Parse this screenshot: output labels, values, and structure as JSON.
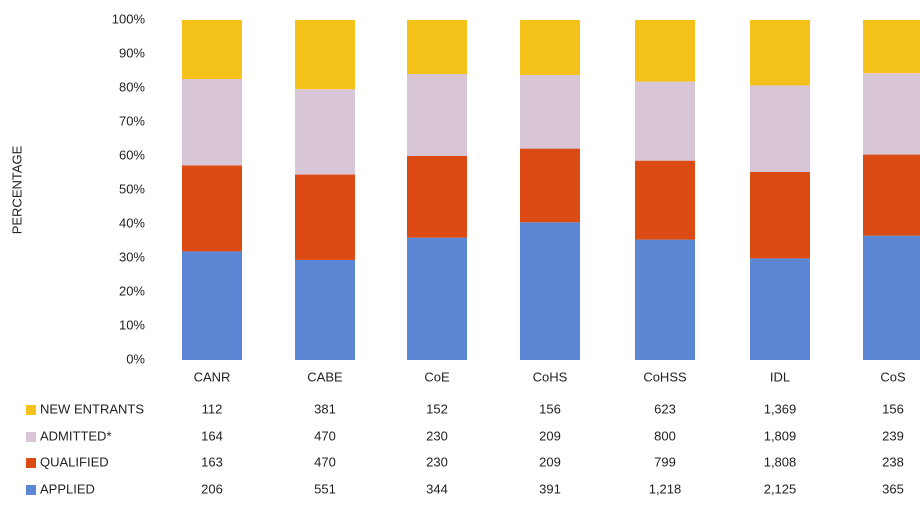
{
  "chart_data": {
    "type": "stacked_percent_bar",
    "y_axis_label": "PERCENTAGE",
    "categories": [
      "CANR",
      "CABE",
      "CoE",
      "CoHS",
      "CoHSS",
      "IDL",
      "CoS"
    ],
    "series": [
      {
        "name": "NEW ENTRANTS",
        "color": "#f5c21b",
        "values": [
          112,
          381,
          152,
          156,
          623,
          1369,
          156
        ],
        "value_labels": [
          "112",
          "381",
          "152",
          "156",
          "623",
          "1,369",
          "156"
        ]
      },
      {
        "name": "ADMITTED*",
        "color": "#d8c5d6",
        "values": [
          164,
          470,
          230,
          209,
          800,
          1809,
          239
        ],
        "value_labels": [
          "164",
          "470",
          "230",
          "209",
          "800",
          "1,809",
          "239"
        ]
      },
      {
        "name": "QUALIFIED",
        "color": "#dc4b14",
        "values": [
          163,
          470,
          230,
          209,
          799,
          1808,
          238
        ],
        "value_labels": [
          "163",
          "470",
          "230",
          "209",
          "799",
          "1,808",
          "238"
        ]
      },
      {
        "name": "APPLIED",
        "color": "#5b86d3",
        "values": [
          206,
          551,
          344,
          391,
          1218,
          2125,
          365
        ],
        "value_labels": [
          "206",
          "551",
          "344",
          "391",
          "1,218",
          "2,125",
          "365"
        ]
      }
    ],
    "ylim": [
      0,
      100
    ],
    "yticks": [
      {
        "value": 0,
        "label": "0%"
      },
      {
        "value": 10,
        "label": "10%"
      },
      {
        "value": 20,
        "label": "20%"
      },
      {
        "value": 30,
        "label": "30%"
      },
      {
        "value": 40,
        "label": "40%"
      },
      {
        "value": 50,
        "label": "50%"
      },
      {
        "value": 60,
        "label": "60%"
      },
      {
        "value": 70,
        "label": "70%"
      },
      {
        "value": 80,
        "label": "80%"
      },
      {
        "value": 90,
        "label": "90%"
      },
      {
        "value": 100,
        "label": "100%"
      }
    ]
  }
}
